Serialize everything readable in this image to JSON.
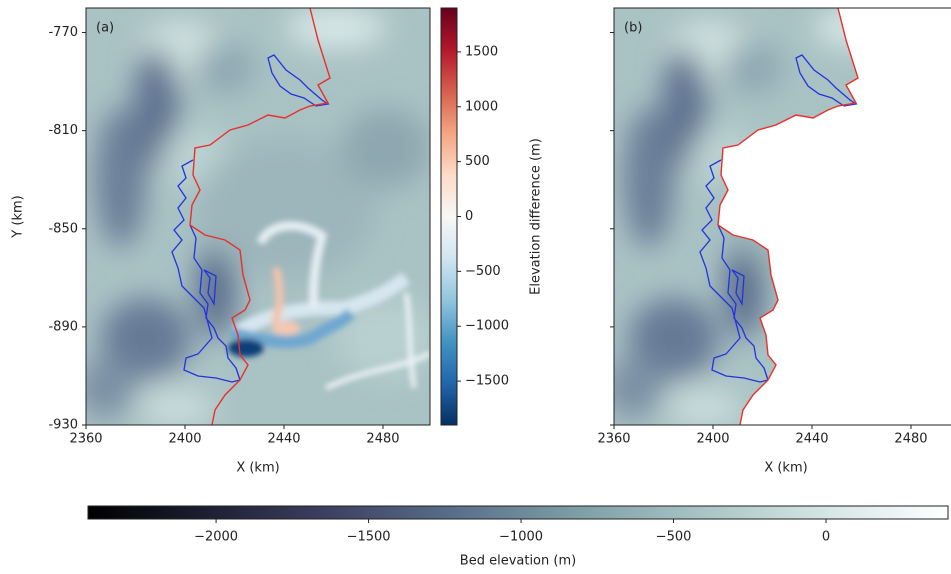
{
  "chart_data": [
    {
      "type": "heatmap",
      "label": "(a)",
      "xlabel": "X (km)",
      "ylabel": "Y (km)",
      "xlim": [
        2360,
        2499
      ],
      "ylim": [
        -930,
        -760
      ],
      "xticks": [
        2360,
        2400,
        2440,
        2480
      ],
      "yticks": [
        -770,
        -810,
        -850,
        -890,
        -930
      ]
    },
    {
      "type": "heatmap",
      "label": "(b)",
      "xlabel": "X (km)",
      "xlim": [
        2360,
        2499
      ],
      "ylim": [
        -930,
        -760
      ],
      "xticks": [
        2360,
        2400,
        2440,
        2480
      ],
      "yticks": [
        -770,
        -810,
        -850,
        -890,
        -930
      ]
    }
  ],
  "colorbars": [
    {
      "label": "Elevation difference (m)",
      "orientation": "vertical",
      "lim": [
        -1900,
        1900
      ],
      "ticks": [
        {
          "value": -1500,
          "label": "−1500"
        },
        {
          "value": -1000,
          "label": "−1000"
        },
        {
          "value": -500,
          "label": "−500"
        },
        0,
        500,
        1000,
        1500
      ],
      "colors": [
        "#053061",
        "#2166ac",
        "#4393c3",
        "#92c5de",
        "#d1e5f0",
        "#f7f7f7",
        "#fddbc7",
        "#f4a582",
        "#d6604d",
        "#b2182b",
        "#67001f"
      ]
    },
    {
      "label": "Bed elevation (m)",
      "orientation": "horizontal",
      "lim": [
        -2420,
        400
      ],
      "ticks": [
        {
          "value": -2000,
          "label": "−2000"
        },
        {
          "value": -1500,
          "label": "−1500"
        },
        {
          "value": -1000,
          "label": "−1000"
        },
        {
          "value": -500,
          "label": "−500"
        },
        0
      ],
      "colors": [
        "#000000",
        "#1f1f35",
        "#3e4263",
        "#59708a",
        "#7f9fa7",
        "#a8c4c4",
        "#d4e6e4",
        "#ffffff"
      ]
    }
  ]
}
